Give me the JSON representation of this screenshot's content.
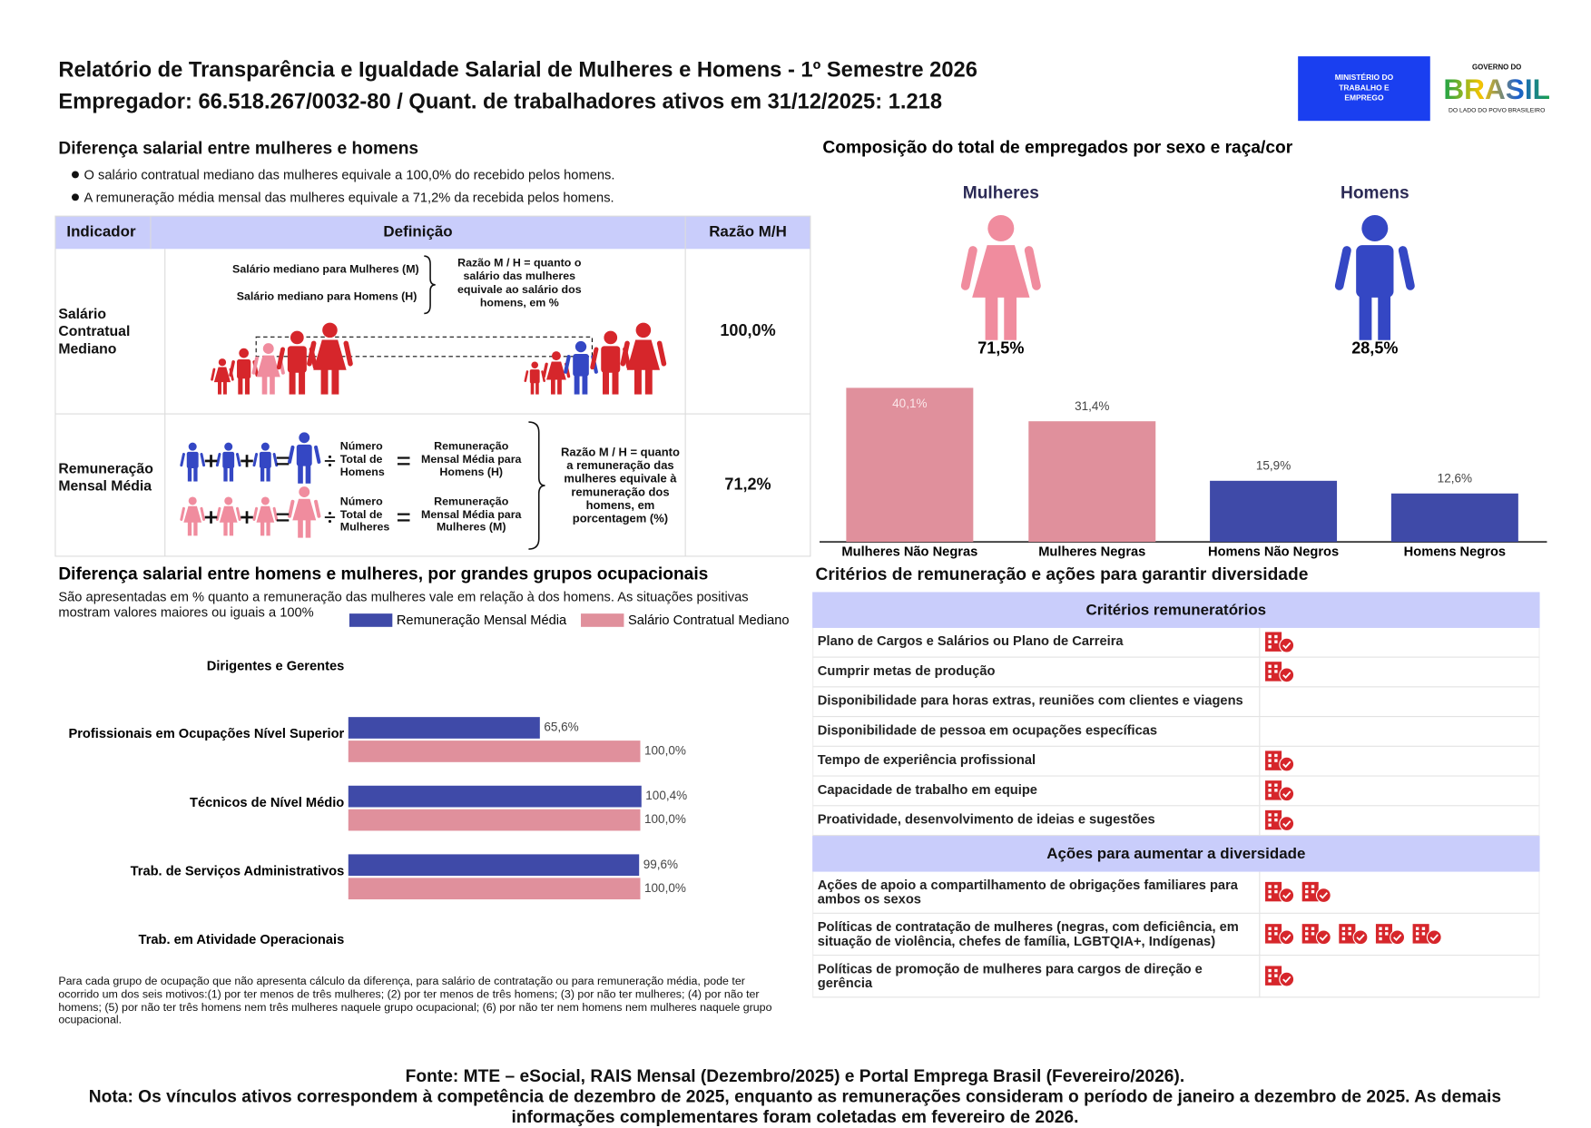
{
  "header": {
    "title": "Relatório de Transparência e Igualdade Salarial de Mulheres e Homens - 1º Semestre 2026",
    "subtitle": "Empregador: 66.518.267/0032-80 / Quant. de trabalhadores ativos em 31/12/2025: 1.218"
  },
  "logos": {
    "ministry": "MINISTÉRIO DO TRABALHO E EMPREGO",
    "government_top": "GOVERNO DO",
    "government_name": "BRASIL",
    "government_motto": "DO LADO DO POVO BRASILEIRO"
  },
  "salary_gap": {
    "title": "Diferença salarial entre mulheres e homens",
    "bullets": [
      "O salário contratual mediano das mulheres equivale a 100,0% do recebido pelos homens.",
      "A remuneração média mensal das mulheres equivale a 71,2% da recebida pelos homens."
    ]
  },
  "indicator_table": {
    "headers": [
      "Indicador",
      "Definição",
      "Razão M/H"
    ],
    "rows": [
      {
        "indicator": "Salário Contratual Mediano",
        "definition": {
          "women": "Salário mediano para Mulheres (M)",
          "men": "Salário mediano para Homens (H)",
          "ratio": "Razão M / H = quanto o salário das mulheres equivale ao salário dos homens, em %"
        },
        "value": "100,0%"
      },
      {
        "indicator": "Remuneração Mensal Média",
        "definition": {
          "men_count": "Número Total de Homens",
          "men_result": "Remuneração Mensal Média para Homens (H)",
          "women_count": "Número Total de Mulheres",
          "women_result": "Remuneração Mensal Média para Mulheres (M)",
          "ratio": "Razão M / H = quanto a remuneração das mulheres equivale à remuneração dos homens, em porcentagem (%)"
        },
        "value": "71,2%"
      }
    ]
  },
  "chart_data": [
    {
      "type": "bar",
      "title": "Composição do total de empregados por sexo e raça/cor",
      "gender": {
        "categories": [
          "Mulheres",
          "Homens"
        ],
        "values": [
          71.5,
          28.5
        ],
        "value_labels": [
          "71,5%",
          "28,5%"
        ],
        "colors": [
          "#f08c9e",
          "#3447c4"
        ]
      },
      "categories": [
        "Mulheres Não Negras",
        "Mulheres Negras",
        "Homens Não Negros",
        "Homens Negros"
      ],
      "values": [
        40.1,
        31.4,
        15.9,
        12.6
      ],
      "value_labels": [
        "40,1%",
        "31,4%",
        "15,9%",
        "12,6%"
      ],
      "colors": [
        "#e0909c",
        "#e0909c",
        "#3f4aa8",
        "#3f4aa8"
      ]
    },
    {
      "type": "hbar",
      "title": "Diferença salarial entre homens e mulheres, por grandes grupos ocupacionais",
      "subtitle": "São apresentadas em % quanto a remuneração das mulheres vale em relação à dos homens. As situações positivas mostram valores maiores ou iguais a 100%",
      "categories": [
        "Dirigentes e Gerentes",
        "Profissionais em Ocupações Nível Superior",
        "Técnicos de Nível Médio",
        "Trab. de Serviços Administrativos",
        "Trab. em Atividade Operacionais"
      ],
      "series": [
        {
          "name": "Remuneração Mensal Média",
          "color": "#3f4aa8",
          "values": [
            null,
            65.6,
            100.4,
            99.6,
            null
          ],
          "value_labels": [
            null,
            "65,6%",
            "100,4%",
            "99,6%",
            null
          ]
        },
        {
          "name": "Salário Contratual Mediano",
          "color": "#e0909c",
          "values": [
            null,
            100,
            100,
            100,
            null
          ],
          "value_labels": [
            null,
            "100,0%",
            "100,0%",
            "100,0%",
            null
          ]
        }
      ],
      "legend": "top"
    }
  ],
  "occupation_note": "Para cada grupo de ocupação que não apresenta cálculo da diferença, para salário de contratação ou para remuneração média, pode ter ocorrido um dos seis motivos:(1) por ter menos de três mulheres; (2) por ter menos de três homens; (3) por não ter mulheres; (4) por não ter homens; (5) por não ter três homens nem três mulheres naquele grupo ocupacional; (6) por não ter nem homens nem mulheres naquele grupo ocupacional.",
  "criteria": {
    "title": "Critérios de remuneração e ações para garantir diversidade",
    "sections": [
      {
        "header": "Critérios remuneratórios",
        "items": [
          {
            "label": "Plano de Cargos e Salários ou Plano de Carreira",
            "icons": 1
          },
          {
            "label": "Cumprir metas de produção",
            "icons": 1
          },
          {
            "label": "Disponibilidade para horas extras, reuniões com clientes e viagens",
            "icons": 0
          },
          {
            "label": "Disponibilidade de pessoa em ocupações específicas",
            "icons": 0
          },
          {
            "label": "Tempo de experiência profissional",
            "icons": 1
          },
          {
            "label": "Capacidade de trabalho em equipe",
            "icons": 1
          },
          {
            "label": "Proatividade, desenvolvimento de ideias e sugestões",
            "icons": 1
          }
        ]
      },
      {
        "header": "Ações para aumentar a diversidade",
        "items": [
          {
            "label": "Ações de apoio a compartilhamento de obrigações familiares para ambos os sexos",
            "icons": 2
          },
          {
            "label": "Políticas de contratação de mulheres (negras, com deficiência, em situação de violência, chefes de família, LGBTQIA+, Indígenas)",
            "icons": 5
          },
          {
            "label": "Políticas de promoção de mulheres para cargos de direção e gerência",
            "icons": 1
          }
        ]
      }
    ]
  },
  "footer": {
    "source": "Fonte: MTE – eSocial, RAIS Mensal (Dezembro/2025) e Portal Emprega Brasil (Fevereiro/2026).",
    "note": "Nota: Os vínculos ativos correspondem à competência de dezembro de 2025, enquanto as remunerações consideram o período de janeiro a dezembro de 2025. As demais informações complementares foram coletadas em fevereiro de 2026."
  }
}
